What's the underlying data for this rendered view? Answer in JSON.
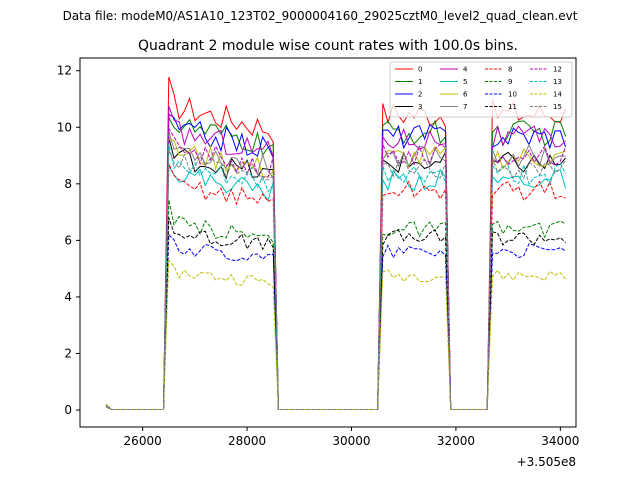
{
  "header": {
    "suptitle": "Data file: modeM0/AS1A10_123T02_9000004160_29025cztM0_level2_quad_clean.evt"
  },
  "chart_data": {
    "type": "line",
    "title": "Quadrant 2 module wise count rates with 100.0s bins.",
    "xlabel": "",
    "ylabel": "",
    "offset_label": "+3.505e8",
    "xlim": [
      24800,
      34300
    ],
    "ylim": [
      -0.6,
      12.45
    ],
    "xticks": [
      26000,
      28000,
      30000,
      32000,
      34000
    ],
    "xtick_labels": [
      "26000",
      "28000",
      "30000",
      "32000",
      "34000"
    ],
    "yticks": [
      0,
      2,
      4,
      6,
      8,
      10,
      12
    ],
    "ytick_labels": [
      "0",
      "2",
      "4",
      "6",
      "8",
      "10",
      "12"
    ],
    "legend_position": "upper-right",
    "series": [
      {
        "name": "0",
        "color": "#ff0000",
        "dash": "solid",
        "level": 10.8
      },
      {
        "name": "1",
        "color": "#008000",
        "dash": "solid",
        "level": 10.1
      },
      {
        "name": "2",
        "color": "#0000ff",
        "dash": "solid",
        "level": 10.0
      },
      {
        "name": "3",
        "color": "#000000",
        "dash": "solid",
        "level": 9.0
      },
      {
        "name": "4",
        "color": "#bf00bf",
        "dash": "solid",
        "level": 9.9
      },
      {
        "name": "5",
        "color": "#00bfbf",
        "dash": "solid",
        "level": 8.4
      },
      {
        "name": "6",
        "color": "#bfbf00",
        "dash": "solid",
        "level": 9.2
      },
      {
        "name": "7",
        "color": "#808080",
        "dash": "solid",
        "level": 9.3
      },
      {
        "name": "8",
        "color": "#ff0000",
        "dash": "dashed",
        "level": 8.0
      },
      {
        "name": "9",
        "color": "#008000",
        "dash": "dashed",
        "level": 6.6
      },
      {
        "name": "10",
        "color": "#0000ff",
        "dash": "dashed",
        "level": 5.8
      },
      {
        "name": "11",
        "color": "#000000",
        "dash": "dashed",
        "level": 6.3
      },
      {
        "name": "12",
        "color": "#bf00bf",
        "dash": "dashed",
        "level": 9.3
      },
      {
        "name": "13",
        "color": "#00bfbf",
        "dash": "dashed",
        "level": 8.6
      },
      {
        "name": "14",
        "color": "#bfbf00",
        "dash": "dashed",
        "level": 4.9
      },
      {
        "name": "15",
        "color": "#808080",
        "dash": "dashed",
        "level": 8.8
      }
    ],
    "segments": [
      {
        "start": 25300,
        "end": 26400,
        "state": "low"
      },
      {
        "start": 26500,
        "end": 28500,
        "state": "high"
      },
      {
        "start": 28600,
        "end": 30500,
        "state": "low"
      },
      {
        "start": 30600,
        "end": 31800,
        "state": "high"
      },
      {
        "start": 31900,
        "end": 32600,
        "state": "low"
      },
      {
        "start": 32700,
        "end": 34100,
        "state": "high"
      }
    ]
  }
}
